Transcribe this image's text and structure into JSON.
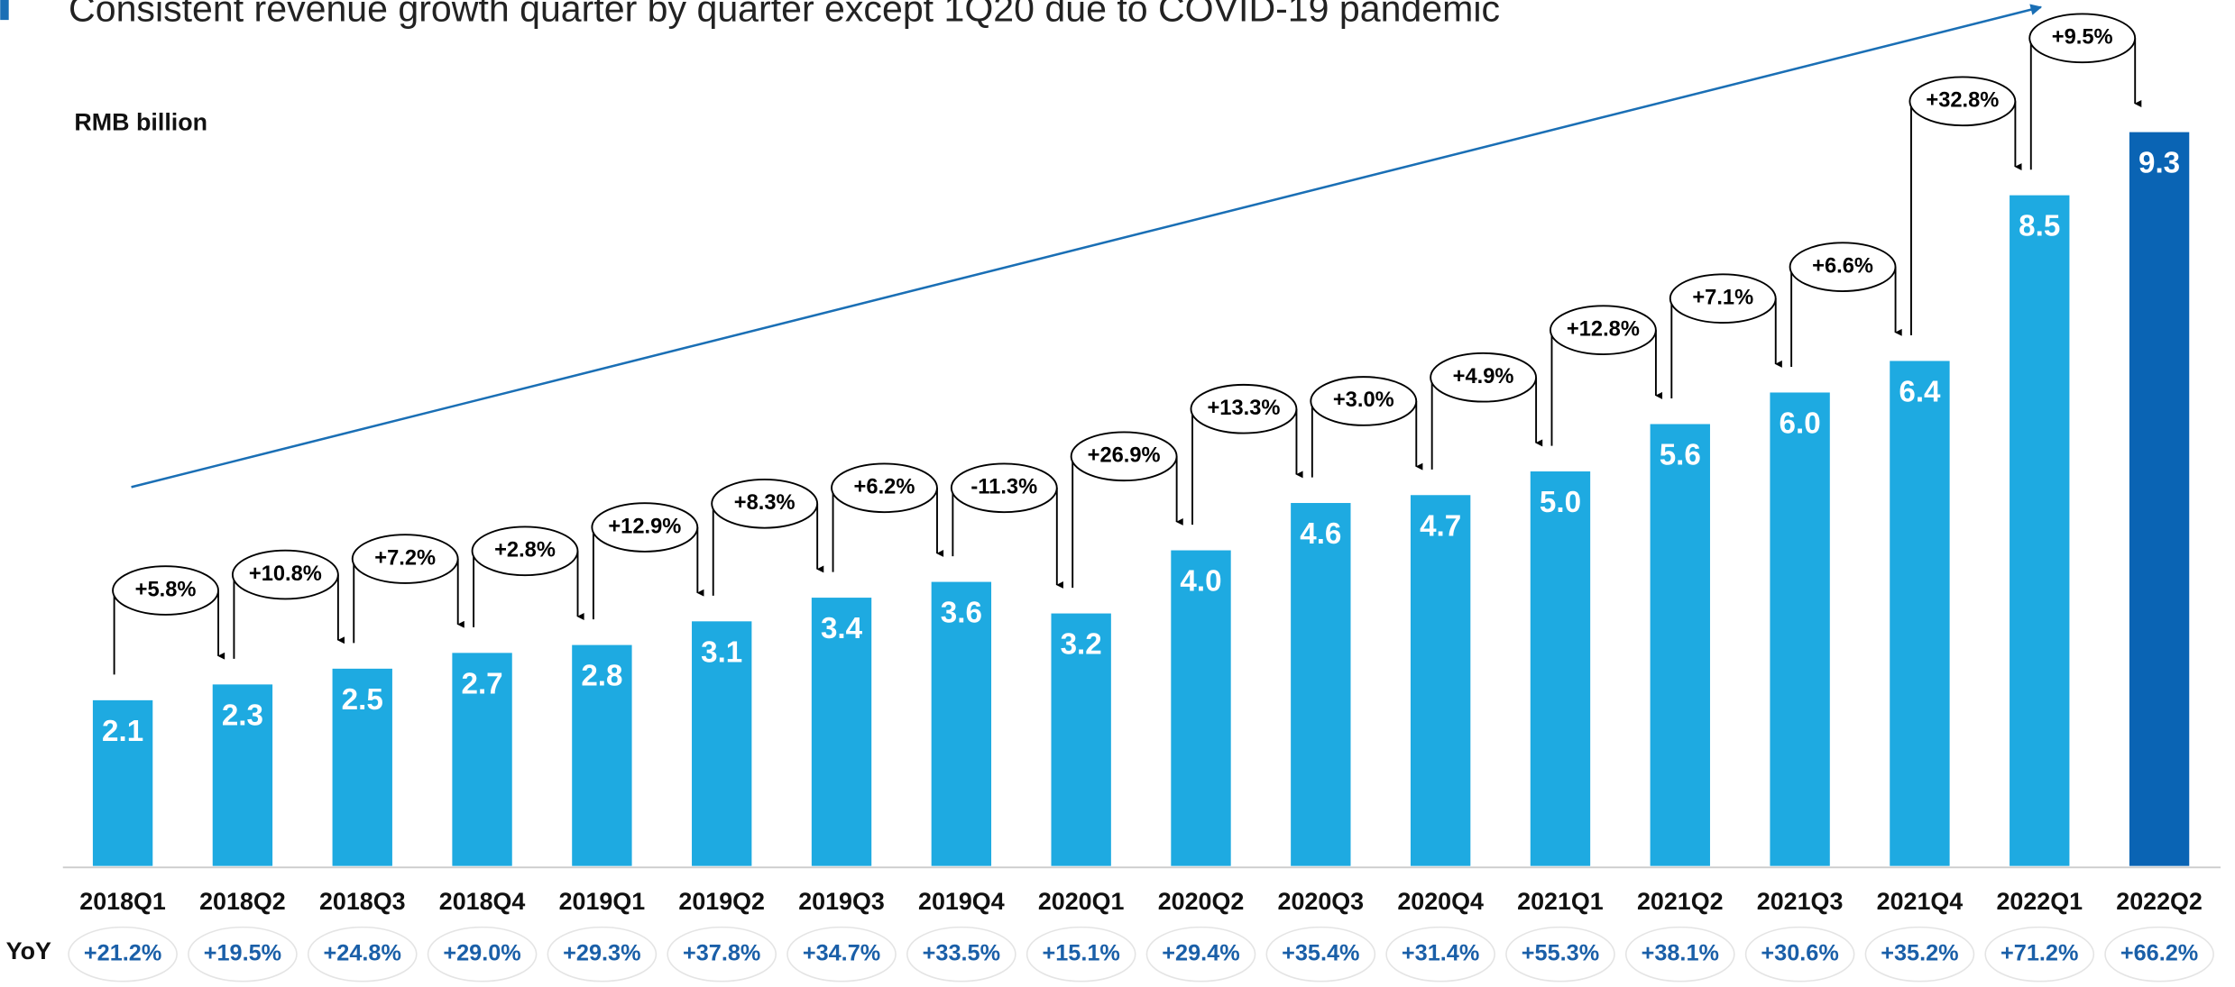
{
  "chart_data": {
    "type": "bar",
    "title": "Consistent revenue growth quarter by quarter except 1Q20 due to COVID-19 pandemic",
    "y_label": "RMB billion",
    "categories": [
      "2018Q1",
      "2018Q2",
      "2018Q3",
      "2018Q4",
      "2019Q1",
      "2019Q2",
      "2019Q3",
      "2019Q4",
      "2020Q1",
      "2020Q2",
      "2020Q3",
      "2020Q4",
      "2021Q1",
      "2021Q2",
      "2021Q3",
      "2021Q4",
      "2022Q1",
      "2022Q2"
    ],
    "values": [
      2.1,
      2.3,
      2.5,
      2.7,
      2.8,
      3.1,
      3.4,
      3.6,
      3.2,
      4.0,
      4.6,
      4.7,
      5.0,
      5.6,
      6.0,
      6.4,
      8.5,
      9.3
    ],
    "value_labels": [
      "2.1",
      "2.3",
      "2.5",
      "2.7",
      "2.8",
      "3.1",
      "3.4",
      "3.6",
      "3.2",
      "4.0",
      "4.6",
      "4.7",
      "5.0",
      "5.6",
      "6.0",
      "6.4",
      "8.5",
      "9.3"
    ],
    "colors": [
      "#1eaae1",
      "#1eaae1",
      "#1eaae1",
      "#1eaae1",
      "#1eaae1",
      "#1eaae1",
      "#1eaae1",
      "#1eaae1",
      "#1eaae1",
      "#1eaae1",
      "#1eaae1",
      "#1eaae1",
      "#1eaae1",
      "#1eaae1",
      "#1eaae1",
      "#1eaae1",
      "#1eaae1",
      "#0a64b4"
    ],
    "ylim": [
      0,
      10
    ],
    "qoq_labels": [
      "+5.8%",
      "+10.8%",
      "+7.2%",
      "+2.8%",
      "+12.9%",
      "+8.3%",
      "+6.2%",
      "-11.3%",
      "+26.9%",
      "+13.3%",
      "+3.0%",
      "+4.9%",
      "+12.8%",
      "+7.1%",
      "+6.6%",
      "+32.8%",
      "+9.5%"
    ],
    "yoy_title": "YoY",
    "yoy_labels": [
      "+21.2%",
      "+19.5%",
      "+24.8%",
      "+29.0%",
      "+29.3%",
      "+37.8%",
      "+34.7%",
      "+33.5%",
      "+15.1%",
      "+29.4%",
      "+35.4%",
      "+31.4%",
      "+55.3%",
      "+38.1%",
      "+30.6%",
      "+35.2%",
      "+71.2%",
      "+66.2%"
    ]
  }
}
